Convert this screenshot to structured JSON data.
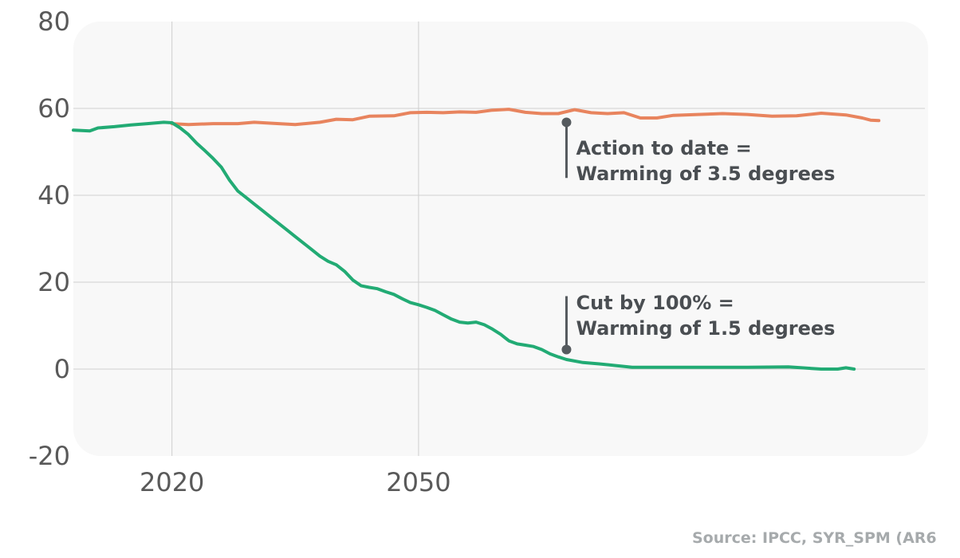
{
  "chart_data": {
    "type": "line",
    "title": "",
    "xlabel": "",
    "ylabel": "",
    "xlim": [
      2008,
      2112
    ],
    "ylim": [
      -20,
      80
    ],
    "x_ticks": [
      2020,
      2050
    ],
    "x_tick_labels": [
      "2020",
      "2050"
    ],
    "y_ticks": [
      -20,
      0,
      20,
      40,
      60,
      80
    ],
    "y_tick_labels": [
      "-20",
      "0",
      "20",
      "40",
      "60",
      "80"
    ],
    "grid": true,
    "legend": "none",
    "series": [
      {
        "color": "#e8845e",
        "points": [
          [
            2020,
            56.5
          ],
          [
            2022,
            56.3
          ],
          [
            2025,
            56.5
          ],
          [
            2028,
            56.5
          ],
          [
            2030,
            56.8
          ],
          [
            2033,
            56.5
          ],
          [
            2035,
            56.3
          ],
          [
            2038,
            56.8
          ],
          [
            2040,
            57.5
          ],
          [
            2042,
            57.4
          ],
          [
            2044,
            58.2
          ],
          [
            2047,
            58.3
          ],
          [
            2049,
            59.0
          ],
          [
            2051,
            59.1
          ],
          [
            2053,
            59.0
          ],
          [
            2055,
            59.2
          ],
          [
            2057,
            59.1
          ],
          [
            2059,
            59.6
          ],
          [
            2061,
            59.8
          ],
          [
            2063,
            59.1
          ],
          [
            2065,
            58.8
          ],
          [
            2067,
            58.8
          ],
          [
            2069,
            59.7
          ],
          [
            2071,
            59.0
          ],
          [
            2073,
            58.8
          ],
          [
            2075,
            59.0
          ],
          [
            2077,
            57.8
          ],
          [
            2079,
            57.8
          ],
          [
            2081,
            58.4
          ],
          [
            2084,
            58.6
          ],
          [
            2087,
            58.8
          ],
          [
            2090,
            58.6
          ],
          [
            2093,
            58.2
          ],
          [
            2096,
            58.3
          ],
          [
            2099,
            58.9
          ],
          [
            2102,
            58.5
          ],
          [
            2104,
            57.8
          ],
          [
            2105,
            57.3
          ],
          [
            2106,
            57.2
          ]
        ]
      },
      {
        "color": "#22ab74",
        "points": [
          [
            2008,
            55.0
          ],
          [
            2010,
            54.8
          ],
          [
            2011,
            55.5
          ],
          [
            2013,
            55.8
          ],
          [
            2015,
            56.2
          ],
          [
            2017,
            56.5
          ],
          [
            2019,
            56.8
          ],
          [
            2020,
            56.7
          ],
          [
            2021,
            55.5
          ],
          [
            2022,
            54.0
          ],
          [
            2023,
            52.0
          ],
          [
            2024,
            50.3
          ],
          [
            2025,
            48.5
          ],
          [
            2026,
            46.5
          ],
          [
            2027,
            43.5
          ],
          [
            2028,
            41.0
          ],
          [
            2029,
            39.5
          ],
          [
            2030,
            38.0
          ],
          [
            2031,
            36.5
          ],
          [
            2032,
            35.0
          ],
          [
            2033,
            33.5
          ],
          [
            2034,
            32.0
          ],
          [
            2035,
            30.5
          ],
          [
            2036,
            29.0
          ],
          [
            2037,
            27.5
          ],
          [
            2038,
            26.0
          ],
          [
            2039,
            24.8
          ],
          [
            2040,
            24.0
          ],
          [
            2041,
            22.5
          ],
          [
            2042,
            20.5
          ],
          [
            2043,
            19.2
          ],
          [
            2044,
            18.8
          ],
          [
            2045,
            18.5
          ],
          [
            2046,
            17.8
          ],
          [
            2047,
            17.2
          ],
          [
            2048,
            16.2
          ],
          [
            2049,
            15.3
          ],
          [
            2050,
            14.8
          ],
          [
            2051,
            14.2
          ],
          [
            2052,
            13.5
          ],
          [
            2053,
            12.5
          ],
          [
            2054,
            11.5
          ],
          [
            2055,
            10.8
          ],
          [
            2056,
            10.6
          ],
          [
            2057,
            10.8
          ],
          [
            2058,
            10.2
          ],
          [
            2059,
            9.2
          ],
          [
            2060,
            8.0
          ],
          [
            2061,
            6.5
          ],
          [
            2062,
            5.8
          ],
          [
            2063,
            5.5
          ],
          [
            2064,
            5.2
          ],
          [
            2065,
            4.5
          ],
          [
            2066,
            3.5
          ],
          [
            2067,
            2.8
          ],
          [
            2068,
            2.2
          ],
          [
            2070,
            1.5
          ],
          [
            2072,
            1.2
          ],
          [
            2074,
            0.8
          ],
          [
            2076,
            0.4
          ],
          [
            2080,
            0.4
          ],
          [
            2085,
            0.4
          ],
          [
            2090,
            0.4
          ],
          [
            2095,
            0.5
          ],
          [
            2099,
            0.0
          ],
          [
            2101,
            0.0
          ],
          [
            2102,
            0.3
          ],
          [
            2103,
            0.0
          ]
        ]
      }
    ],
    "annotations": [
      {
        "x": 2068,
        "y_start": 56.8,
        "y_end": 44.0,
        "lines": [
          "Action to date =",
          "Warming of 3.5 degrees"
        ]
      },
      {
        "x": 2068,
        "y_start": 4.5,
        "y_end": 16.8,
        "lines": [
          "Cut by 100% =",
          "Warming of 1.5 degrees"
        ]
      }
    ],
    "source": "Source: IPCC, SYR_SPM (AR6"
  }
}
